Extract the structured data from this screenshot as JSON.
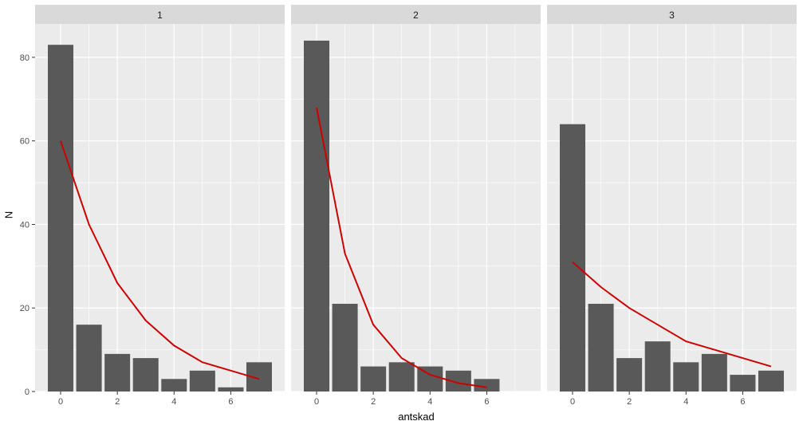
{
  "chart_data": {
    "type": "bar",
    "xlabel": "antskad",
    "ylabel": "N",
    "ylim": [
      0,
      88
    ],
    "xlim": [
      -0.9,
      7.9
    ],
    "x_ticks": [
      0,
      2,
      4,
      6
    ],
    "y_ticks": [
      0,
      20,
      40,
      60,
      80
    ],
    "grid": true,
    "panels": [
      {
        "facet_label": "1",
        "x": [
          0,
          1,
          2,
          3,
          4,
          5,
          6,
          7
        ],
        "values": [
          83,
          16,
          9,
          8,
          3,
          5,
          1,
          7
        ],
        "line": {
          "x": [
            0,
            1,
            2,
            3,
            4,
            5,
            6,
            7
          ],
          "y": [
            60,
            40,
            26,
            17,
            11,
            7,
            5,
            3
          ]
        }
      },
      {
        "facet_label": "2",
        "x": [
          0,
          1,
          2,
          3,
          4,
          5,
          6
        ],
        "values": [
          84,
          21,
          6,
          7,
          6,
          5,
          3
        ],
        "line": {
          "x": [
            0,
            1,
            2,
            3,
            4,
            5,
            6
          ],
          "y": [
            68,
            33,
            16,
            8,
            4,
            2,
            1
          ]
        }
      },
      {
        "facet_label": "3",
        "x": [
          0,
          1,
          2,
          3,
          4,
          5,
          6,
          7
        ],
        "values": [
          64,
          21,
          8,
          12,
          7,
          9,
          4,
          5
        ],
        "line": {
          "x": [
            0,
            1,
            2,
            3,
            4,
            5,
            6,
            7
          ],
          "y": [
            31,
            25,
            20,
            16,
            12,
            10,
            8,
            6
          ]
        }
      }
    ],
    "colors": {
      "bar": "#595959",
      "line": "#cc0000",
      "panel_bg": "#ebebeb",
      "strip_bg": "#d9d9d9",
      "grid": "#ffffff"
    }
  }
}
